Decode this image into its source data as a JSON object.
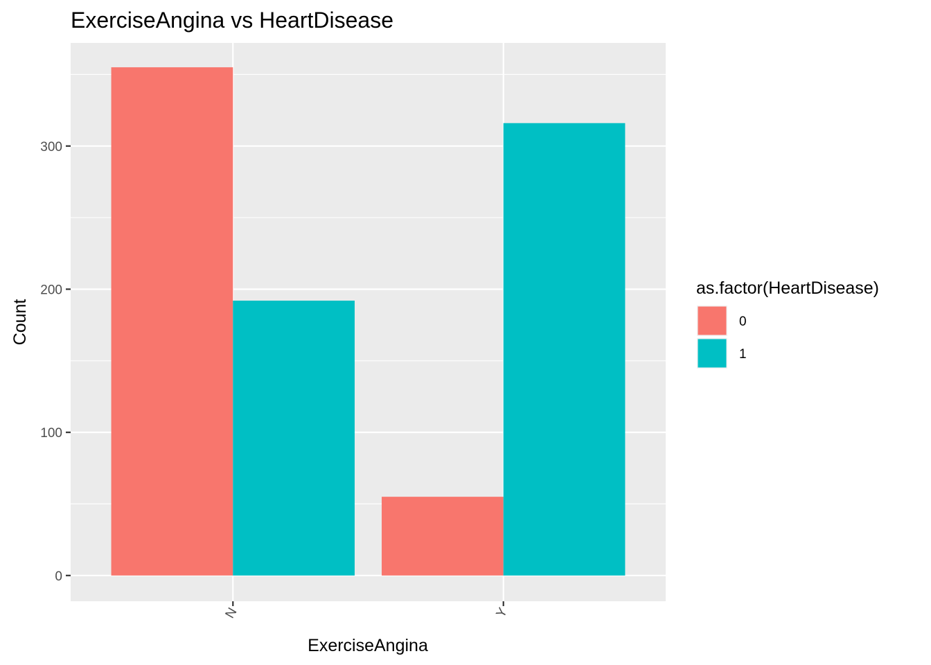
{
  "chart_data": {
    "type": "bar",
    "title": "ExerciseAngina vs HeartDisease",
    "xlabel": "ExerciseAngina",
    "ylabel": "Count",
    "categories": [
      "N",
      "Y"
    ],
    "series": [
      {
        "name": "0",
        "color": "#F8766D",
        "values": [
          355,
          55
        ]
      },
      {
        "name": "1",
        "color": "#00BFC4",
        "values": [
          192,
          316
        ]
      }
    ],
    "ylim": [
      -18,
      372
    ],
    "yticks": [
      0,
      100,
      200,
      300
    ],
    "ytick_labels": [
      "0",
      "100",
      "200",
      "300"
    ],
    "grid": true,
    "panel_background": "#EBEBEB",
    "legend": {
      "title": "as.factor(HeartDisease)",
      "position": "right",
      "entries": [
        "0",
        "1"
      ]
    }
  }
}
